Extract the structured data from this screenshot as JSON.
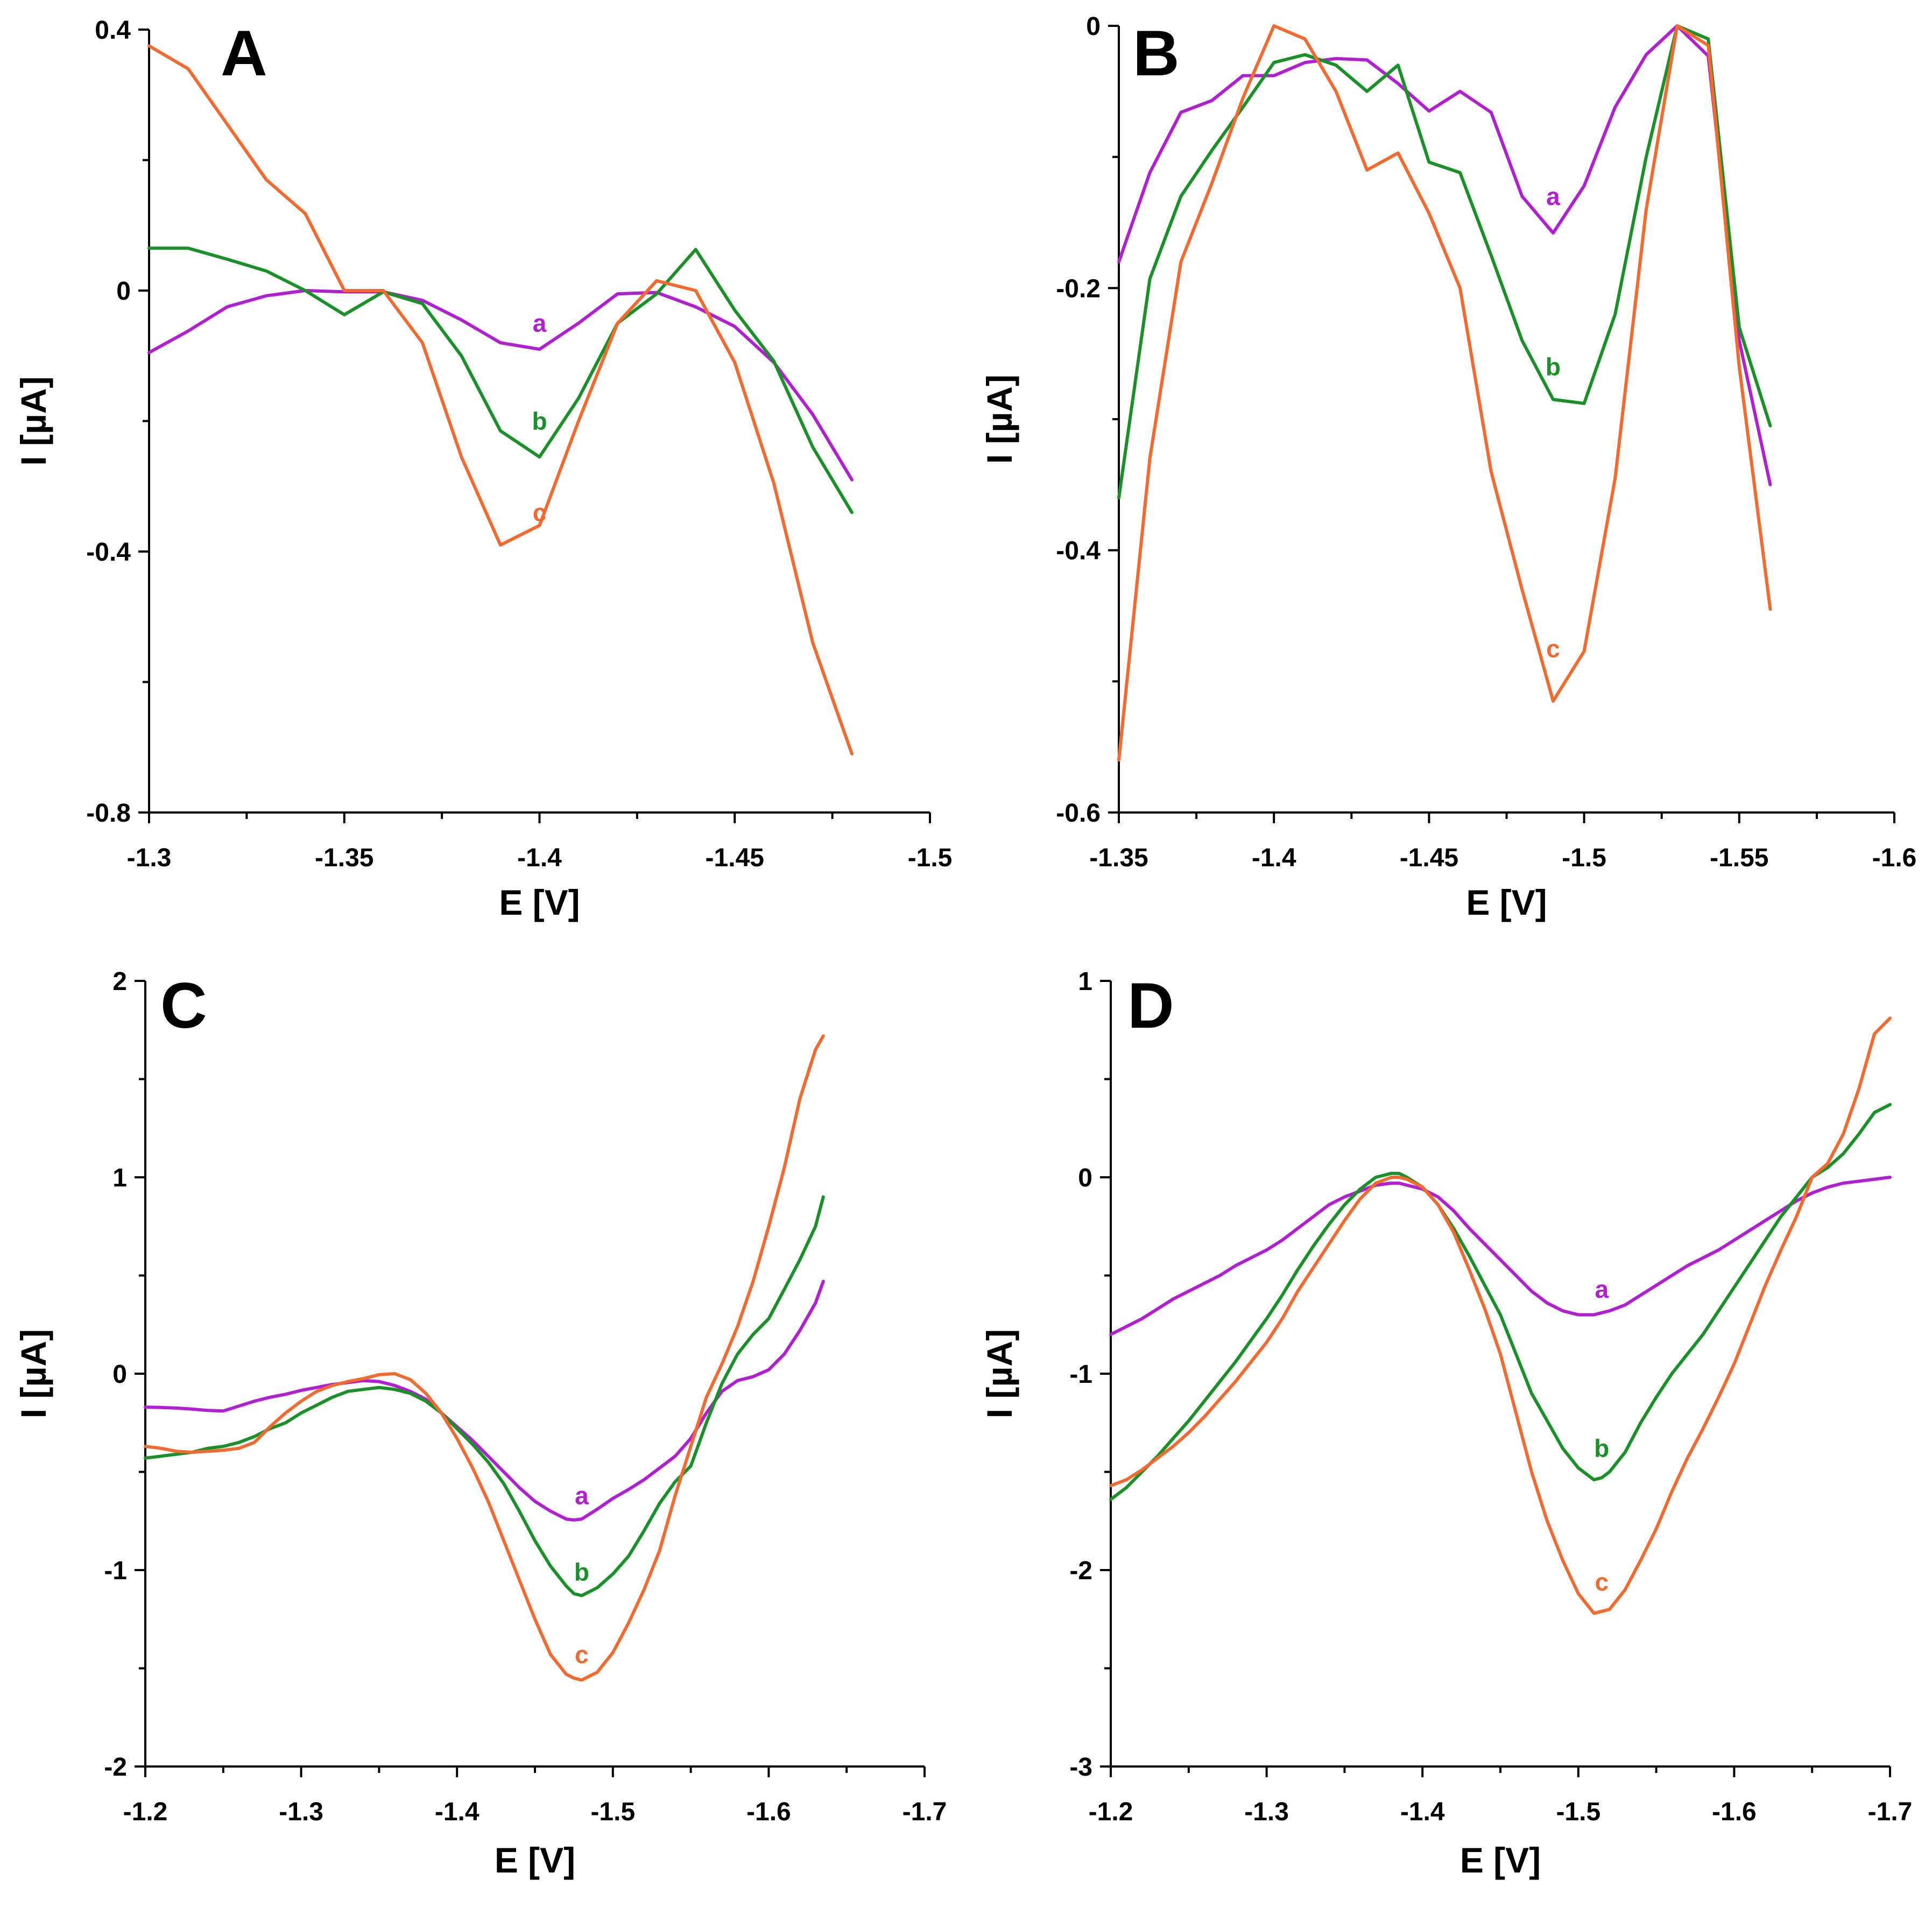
{
  "colors": {
    "a": "#b01fd0",
    "b": "#1a9028",
    "c": "#f26a30"
  },
  "chart_data": [
    {
      "id": "A",
      "type": "line",
      "panel_label": "A",
      "xlabel": "E [V]",
      "ylabel": "I [µA]",
      "xlim": [
        -1.3,
        -1.5
      ],
      "ylim": [
        -0.8,
        0.4
      ],
      "xticks": [
        -1.3,
        -1.35,
        -1.4,
        -1.45,
        -1.5
      ],
      "xtick_labels": [
        "-1.3",
        "-1.35",
        "-1.4",
        "-1.45",
        "-1.5"
      ],
      "yticks": [
        -0.8,
        -0.4,
        0,
        0.4
      ],
      "ytick_labels": [
        "-0.8",
        "-0.4",
        "0",
        "0.4"
      ],
      "yminor": [
        -0.6,
        -0.2,
        0.2
      ],
      "x": [
        -1.3,
        -1.31,
        -1.32,
        -1.33,
        -1.34,
        -1.35,
        -1.36,
        -1.37,
        -1.38,
        -1.39,
        -1.4,
        -1.41,
        -1.42,
        -1.43,
        -1.44,
        -1.45,
        -1.46,
        -1.47,
        -1.48
      ],
      "series": [
        {
          "name": "a",
          "color_key": "a",
          "label_at": [
            -1.4,
            -0.05
          ],
          "values": [
            -0.095,
            -0.062,
            -0.025,
            -0.008,
            0.0,
            -0.002,
            -0.002,
            -0.015,
            -0.045,
            -0.08,
            -0.09,
            -0.05,
            -0.005,
            -0.003,
            -0.025,
            -0.055,
            -0.11,
            -0.19,
            -0.29
          ]
        },
        {
          "name": "b",
          "color_key": "b",
          "label_at": [
            -1.4,
            -0.2
          ],
          "values": [
            0.065,
            0.065,
            0.048,
            0.03,
            0.0,
            -0.037,
            -0.002,
            -0.02,
            -0.1,
            -0.215,
            -0.255,
            -0.165,
            -0.05,
            -0.005,
            0.063,
            -0.03,
            -0.108,
            -0.24,
            -0.34
          ]
        },
        {
          "name": "c",
          "color_key": "c",
          "label_at": [
            -1.4,
            -0.34
          ],
          "values": [
            0.375,
            0.34,
            0.255,
            0.17,
            0.118,
            0.0,
            0.0,
            -0.08,
            -0.255,
            -0.39,
            -0.36,
            -0.2,
            -0.05,
            0.015,
            0.0,
            -0.11,
            -0.295,
            -0.54,
            -0.71
          ]
        }
      ]
    },
    {
      "id": "B",
      "type": "line",
      "panel_label": "B",
      "xlabel": "E [V]",
      "ylabel": "I [µA]",
      "xlim": [
        -1.35,
        -1.6
      ],
      "ylim": [
        -0.6,
        0
      ],
      "xticks": [
        -1.35,
        -1.4,
        -1.45,
        -1.5,
        -1.55,
        -1.6
      ],
      "xtick_labels": [
        "-1.35",
        "-1.4",
        "-1.45",
        "-1.5",
        "-1.55",
        "-1.6"
      ],
      "yticks": [
        -0.6,
        -0.4,
        -0.2,
        0
      ],
      "ytick_labels": [
        "-0.6",
        "-0.4",
        "-0.2",
        "0"
      ],
      "yminor": [
        -0.5,
        -0.3,
        -0.1
      ],
      "x": [
        -1.35,
        -1.36,
        -1.37,
        -1.38,
        -1.39,
        -1.4,
        -1.41,
        -1.42,
        -1.43,
        -1.44,
        -1.45,
        -1.46,
        -1.47,
        -1.48,
        -1.49,
        -1.5,
        -1.51,
        -1.52,
        -1.53,
        -1.54,
        -1.55,
        -1.56
      ],
      "series": [
        {
          "name": "a",
          "color_key": "a",
          "label_at": [
            -1.49,
            -0.13
          ],
          "values": [
            -0.18,
            -0.112,
            -0.066,
            -0.057,
            -0.038,
            -0.038,
            -0.028,
            -0.025,
            -0.026,
            -0.044,
            -0.065,
            -0.05,
            -0.066,
            -0.13,
            -0.158,
            -0.122,
            -0.062,
            -0.022,
            0.0,
            -0.023,
            -0.24,
            -0.35
          ]
        },
        {
          "name": "b",
          "color_key": "b",
          "label_at": [
            -1.49,
            -0.26
          ],
          "values": [
            -0.36,
            -0.193,
            -0.13,
            -0.095,
            -0.062,
            -0.028,
            -0.022,
            -0.03,
            -0.05,
            -0.03,
            -0.104,
            -0.112,
            -0.175,
            -0.24,
            -0.285,
            -0.288,
            -0.22,
            -0.1,
            0.0,
            -0.01,
            -0.23,
            -0.305
          ]
        },
        {
          "name": "c",
          "color_key": "c",
          "label_at": [
            -1.49,
            -0.475
          ],
          "values": [
            -0.56,
            -0.33,
            -0.18,
            -0.12,
            -0.055,
            0.0,
            -0.01,
            -0.05,
            -0.11,
            -0.097,
            -0.143,
            -0.2,
            -0.34,
            -0.43,
            -0.515,
            -0.477,
            -0.345,
            -0.14,
            0.0,
            -0.015,
            -0.26,
            -0.445
          ]
        }
      ]
    },
    {
      "id": "C",
      "type": "line",
      "panel_label": "C",
      "xlabel": "E [V]",
      "ylabel": "I [µA]",
      "xlim": [
        -1.2,
        -1.7
      ],
      "ylim": [
        -2,
        2
      ],
      "xticks": [
        -1.2,
        -1.3,
        -1.4,
        -1.5,
        -1.6,
        -1.7
      ],
      "xtick_labels": [
        "-1.2",
        "-1.3",
        "-1.4",
        "-1.5",
        "-1.6",
        "-1.7"
      ],
      "yticks": [
        -2,
        -1,
        0,
        1,
        2
      ],
      "ytick_labels": [
        "-2",
        "-1",
        "0",
        "1",
        "2"
      ],
      "yminor": [
        -1.5,
        -0.5,
        0.5,
        1.5
      ],
      "x": [
        -1.2,
        -1.21,
        -1.22,
        -1.23,
        -1.24,
        -1.25,
        -1.26,
        -1.27,
        -1.28,
        -1.29,
        -1.3,
        -1.31,
        -1.32,
        -1.33,
        -1.34,
        -1.35,
        -1.36,
        -1.37,
        -1.38,
        -1.39,
        -1.4,
        -1.41,
        -1.42,
        -1.43,
        -1.44,
        -1.45,
        -1.46,
        -1.47,
        -1.475,
        -1.48,
        -1.49,
        -1.5,
        -1.51,
        -1.52,
        -1.53,
        -1.54,
        -1.55,
        -1.56,
        -1.57,
        -1.58,
        -1.59,
        -1.6,
        -1.61,
        -1.62,
        -1.63,
        -1.635
      ],
      "series": [
        {
          "name": "a",
          "color_key": "a",
          "label_at": [
            -1.48,
            -0.62
          ],
          "values": [
            -0.17,
            -0.172,
            -0.175,
            -0.18,
            -0.187,
            -0.19,
            -0.165,
            -0.14,
            -0.12,
            -0.105,
            -0.085,
            -0.07,
            -0.055,
            -0.045,
            -0.035,
            -0.04,
            -0.06,
            -0.09,
            -0.13,
            -0.2,
            -0.27,
            -0.34,
            -0.42,
            -0.5,
            -0.58,
            -0.65,
            -0.7,
            -0.74,
            -0.745,
            -0.74,
            -0.69,
            -0.635,
            -0.59,
            -0.54,
            -0.48,
            -0.42,
            -0.33,
            -0.2,
            -0.09,
            -0.035,
            -0.015,
            0.02,
            0.1,
            0.22,
            0.36,
            0.47
          ]
        },
        {
          "name": "b",
          "color_key": "b",
          "label_at": [
            -1.48,
            -1.01
          ],
          "values": [
            -0.43,
            -0.42,
            -0.41,
            -0.4,
            -0.38,
            -0.37,
            -0.35,
            -0.32,
            -0.28,
            -0.25,
            -0.2,
            -0.16,
            -0.12,
            -0.09,
            -0.08,
            -0.07,
            -0.08,
            -0.1,
            -0.14,
            -0.2,
            -0.28,
            -0.36,
            -0.45,
            -0.56,
            -0.7,
            -0.85,
            -0.98,
            -1.08,
            -1.12,
            -1.13,
            -1.09,
            -1.02,
            -0.93,
            -0.8,
            -0.66,
            -0.55,
            -0.47,
            -0.25,
            -0.05,
            0.1,
            0.2,
            0.28,
            0.43,
            0.58,
            0.75,
            0.9
          ]
        },
        {
          "name": "c",
          "color_key": "c",
          "label_at": [
            -1.48,
            -1.43
          ],
          "values": [
            -0.37,
            -0.38,
            -0.395,
            -0.4,
            -0.395,
            -0.39,
            -0.38,
            -0.35,
            -0.27,
            -0.2,
            -0.14,
            -0.09,
            -0.06,
            -0.04,
            -0.025,
            -0.005,
            0.0,
            -0.03,
            -0.1,
            -0.2,
            -0.33,
            -0.48,
            -0.65,
            -0.85,
            -1.05,
            -1.25,
            -1.43,
            -1.53,
            -1.55,
            -1.56,
            -1.52,
            -1.42,
            -1.27,
            -1.1,
            -0.9,
            -0.62,
            -0.37,
            -0.12,
            0.05,
            0.24,
            0.47,
            0.75,
            1.05,
            1.4,
            1.65,
            1.72
          ]
        }
      ]
    },
    {
      "id": "D",
      "type": "line",
      "panel_label": "D",
      "xlabel": "E [V]",
      "ylabel": "I [µA]",
      "xlim": [
        -1.2,
        -1.7
      ],
      "ylim": [
        -3,
        1
      ],
      "xticks": [
        -1.2,
        -1.3,
        -1.4,
        -1.5,
        -1.6,
        -1.7
      ],
      "xtick_labels": [
        "-1.2",
        "-1.3",
        "-1.4",
        "-1.5",
        "-1.6",
        "-1.7"
      ],
      "yticks": [
        -3,
        -2,
        -1,
        0,
        1
      ],
      "ytick_labels": [
        "-3",
        "-2",
        "-1",
        "0",
        "1"
      ],
      "yminor": [
        -2.5,
        -1.5,
        -0.5,
        0.5
      ],
      "x": [
        -1.2,
        -1.21,
        -1.22,
        -1.23,
        -1.24,
        -1.25,
        -1.26,
        -1.27,
        -1.28,
        -1.29,
        -1.3,
        -1.31,
        -1.32,
        -1.33,
        -1.34,
        -1.35,
        -1.36,
        -1.37,
        -1.38,
        -1.385,
        -1.39,
        -1.4,
        -1.41,
        -1.42,
        -1.43,
        -1.44,
        -1.45,
        -1.46,
        -1.47,
        -1.48,
        -1.49,
        -1.5,
        -1.51,
        -1.515,
        -1.52,
        -1.53,
        -1.54,
        -1.55,
        -1.56,
        -1.57,
        -1.58,
        -1.59,
        -1.6,
        -1.61,
        -1.62,
        -1.63,
        -1.64,
        -1.65,
        -1.66,
        -1.67,
        -1.68,
        -1.69,
        -1.7
      ],
      "series": [
        {
          "name": "a",
          "color_key": "a",
          "label_at": [
            -1.515,
            -0.57
          ],
          "values": [
            -0.8,
            -0.76,
            -0.72,
            -0.67,
            -0.62,
            -0.58,
            -0.54,
            -0.5,
            -0.45,
            -0.41,
            -0.37,
            -0.32,
            -0.26,
            -0.2,
            -0.14,
            -0.1,
            -0.07,
            -0.04,
            -0.03,
            -0.03,
            -0.04,
            -0.06,
            -0.1,
            -0.17,
            -0.26,
            -0.34,
            -0.42,
            -0.5,
            -0.58,
            -0.64,
            -0.68,
            -0.7,
            -0.7,
            -0.69,
            -0.68,
            -0.65,
            -0.6,
            -0.55,
            -0.5,
            -0.45,
            -0.41,
            -0.37,
            -0.32,
            -0.27,
            -0.22,
            -0.17,
            -0.12,
            -0.08,
            -0.05,
            -0.03,
            -0.02,
            -0.01,
            0.0
          ]
        },
        {
          "name": "b",
          "color_key": "b",
          "label_at": [
            -1.515,
            -1.38
          ],
          "values": [
            -1.64,
            -1.58,
            -1.5,
            -1.42,
            -1.33,
            -1.24,
            -1.14,
            -1.04,
            -0.94,
            -0.83,
            -0.72,
            -0.6,
            -0.47,
            -0.35,
            -0.24,
            -0.14,
            -0.06,
            0.0,
            0.02,
            0.02,
            0.0,
            -0.05,
            -0.14,
            -0.26,
            -0.4,
            -0.55,
            -0.7,
            -0.9,
            -1.1,
            -1.24,
            -1.38,
            -1.48,
            -1.54,
            -1.53,
            -1.5,
            -1.4,
            -1.25,
            -1.12,
            -1.0,
            -0.9,
            -0.8,
            -0.68,
            -0.56,
            -0.44,
            -0.32,
            -0.2,
            -0.1,
            0.0,
            0.05,
            0.12,
            0.22,
            0.33,
            0.37
          ]
        },
        {
          "name": "c",
          "color_key": "c",
          "label_at": [
            -1.515,
            -2.06
          ],
          "values": [
            -1.57,
            -1.54,
            -1.49,
            -1.43,
            -1.37,
            -1.3,
            -1.22,
            -1.13,
            -1.04,
            -0.94,
            -0.84,
            -0.72,
            -0.58,
            -0.46,
            -0.34,
            -0.22,
            -0.11,
            -0.03,
            0.0,
            0.0,
            -0.01,
            -0.05,
            -0.14,
            -0.28,
            -0.47,
            -0.67,
            -0.9,
            -1.2,
            -1.5,
            -1.75,
            -1.95,
            -2.12,
            -2.22,
            -2.21,
            -2.2,
            -2.1,
            -1.95,
            -1.79,
            -1.6,
            -1.43,
            -1.28,
            -1.12,
            -0.95,
            -0.75,
            -0.55,
            -0.37,
            -0.2,
            0.0,
            0.07,
            0.22,
            0.45,
            0.73,
            0.81
          ]
        }
      ]
    }
  ]
}
